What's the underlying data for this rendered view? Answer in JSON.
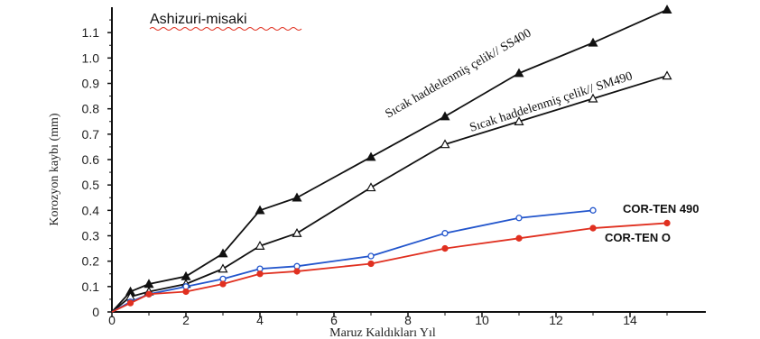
{
  "chart_data": {
    "type": "line",
    "title": "Ashizuri-misaki",
    "xlabel": "Maruz Kaldıkları Yıl",
    "ylabel": "Korozyon kaybı (mm)",
    "xlim": [
      0,
      16
    ],
    "ylim": [
      0,
      1.2
    ],
    "x_ticks": [
      "0",
      "2",
      "4",
      "6",
      "8",
      "10",
      "12",
      "14"
    ],
    "y_ticks": [
      "0",
      "0.1",
      "0.2",
      "0.3",
      "0.4",
      "0.5",
      "0.6",
      "0.7",
      "0.8",
      "0.9",
      "1.0",
      "1.1"
    ],
    "grid": false,
    "series": [
      {
        "name": "Sıcak haddelenmiş çelik// SS400",
        "color": "#111111",
        "marker": "filled-triangle",
        "x": [
          0,
          0.5,
          1,
          2,
          3,
          4,
          5,
          7,
          9,
          11,
          13,
          15
        ],
        "y": [
          0,
          0.08,
          0.11,
          0.14,
          0.23,
          0.4,
          0.45,
          0.61,
          0.77,
          0.94,
          1.06,
          1.19
        ]
      },
      {
        "name": "Sıcak haddelenmiş çelik// SM490",
        "color": "#111111",
        "marker": "open-triangle",
        "x": [
          0,
          0.5,
          1,
          2,
          3,
          4,
          5,
          7,
          9,
          11,
          13,
          15
        ],
        "y": [
          0,
          0.06,
          0.08,
          0.11,
          0.17,
          0.26,
          0.31,
          0.49,
          0.66,
          0.75,
          0.84,
          0.93
        ]
      },
      {
        "name": "COR-TEN 490",
        "color": "#2255cc",
        "marker": "open-circle",
        "x": [
          0,
          0.5,
          1,
          2,
          3,
          4,
          5,
          7,
          9,
          11,
          13
        ],
        "y": [
          0,
          0.04,
          0.07,
          0.1,
          0.13,
          0.17,
          0.18,
          0.22,
          0.31,
          0.37,
          0.4
        ]
      },
      {
        "name": "COR-TEN O",
        "color": "#e03020",
        "marker": "filled-circle",
        "x": [
          0,
          0.5,
          1,
          2,
          3,
          4,
          5,
          7,
          9,
          11,
          13,
          15
        ],
        "y": [
          0,
          0.035,
          0.07,
          0.08,
          0.11,
          0.15,
          0.16,
          0.19,
          0.25,
          0.29,
          0.33,
          0.35
        ]
      }
    ]
  }
}
